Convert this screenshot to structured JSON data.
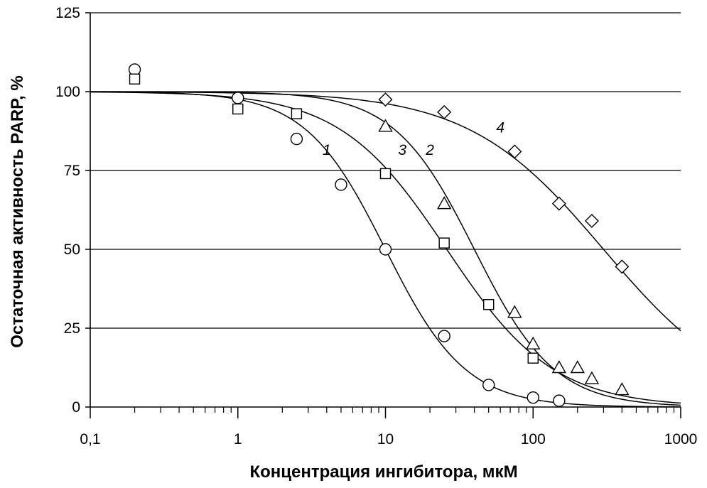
{
  "chart_data": {
    "type": "scatter",
    "title": "",
    "xlabel": "Концентрация  ингибитора,  мкМ",
    "ylabel": "Остаточная  активность  PARP,  %",
    "x_scale": "log",
    "xlim": [
      0.1,
      1000
    ],
    "ylim": [
      0,
      125
    ],
    "x_ticks": [
      0.1,
      1,
      10,
      100,
      1000
    ],
    "x_tick_labels": [
      "0,1",
      "1",
      "10",
      "100",
      "1000"
    ],
    "y_ticks": [
      0,
      25,
      50,
      75,
      100,
      125
    ],
    "y_tick_labels": [
      "0",
      "25",
      "50",
      "75",
      "100",
      "125"
    ],
    "grid": "horizontal",
    "legend": "none",
    "series": [
      {
        "label": "1",
        "marker": "circle",
        "points": [
          [
            0.2,
            107
          ],
          [
            1,
            98
          ],
          [
            2.5,
            85
          ],
          [
            5,
            70.5
          ],
          [
            10,
            50
          ],
          [
            25,
            22.5
          ],
          [
            50,
            7
          ],
          [
            100,
            3
          ],
          [
            150,
            2
          ]
        ],
        "fit": {
          "ic50": 10,
          "hill": 1.6
        }
      },
      {
        "label": "2",
        "marker": "triangle",
        "points": [
          [
            10,
            89
          ],
          [
            25,
            64.5
          ],
          [
            75,
            30
          ],
          [
            100,
            20
          ],
          [
            150,
            12.5
          ],
          [
            200,
            12.5
          ],
          [
            250,
            9
          ],
          [
            400,
            5.5
          ]
        ],
        "fit": {
          "ic50": 40,
          "hill": 1.6
        }
      },
      {
        "label": "3",
        "marker": "square",
        "points": [
          [
            0.2,
            104
          ],
          [
            1,
            94.5
          ],
          [
            2.5,
            93
          ],
          [
            10,
            74
          ],
          [
            25,
            52
          ],
          [
            50,
            32.5
          ],
          [
            100,
            15.5
          ]
        ],
        "fit": {
          "ic50": 26,
          "hill": 1.2
        }
      },
      {
        "label": "4",
        "marker": "diamond",
        "points": [
          [
            10,
            97.5
          ],
          [
            25,
            93.5
          ],
          [
            75,
            81
          ],
          [
            150,
            64.5
          ],
          [
            250,
            59
          ],
          [
            400,
            44.5
          ]
        ],
        "fit": {
          "ic50": 300,
          "hill": 0.95
        }
      }
    ]
  }
}
